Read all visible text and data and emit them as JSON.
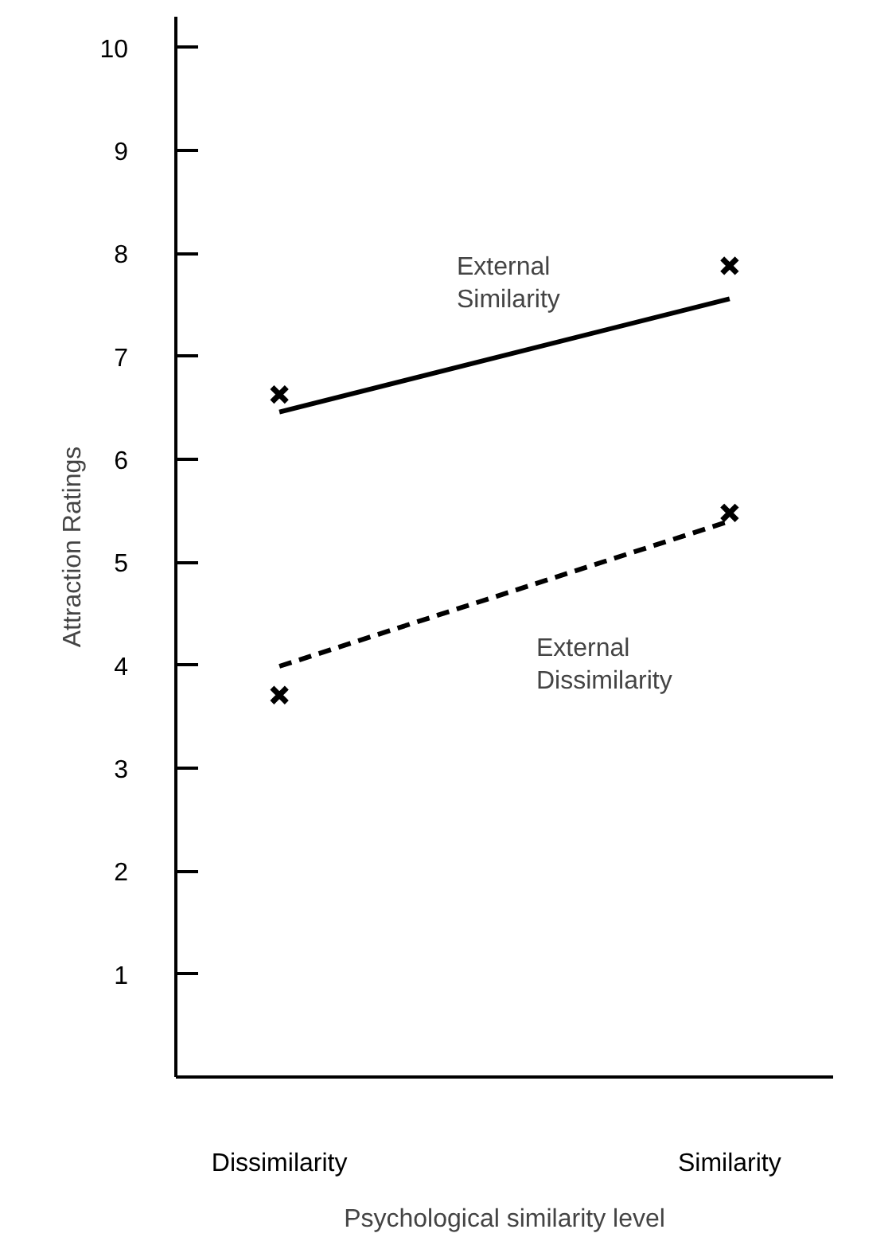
{
  "chart_data": {
    "type": "line",
    "xlabel": "Psychological similarity level",
    "ylabel": "Attraction Ratings",
    "categories": [
      "Dissimilarity",
      "Similarity"
    ],
    "ylim": [
      0,
      10.3
    ],
    "yticks": [
      1,
      2,
      3,
      4,
      5,
      6,
      7,
      8,
      9,
      10
    ],
    "grid": false,
    "series": [
      {
        "name": "External Similarity",
        "line_style": "solid",
        "color": "#000000",
        "values": [
          6.46,
          7.56
        ]
      },
      {
        "type": "scatter",
        "marker": "cross",
        "color": "#000000",
        "values": [
          6.63,
          7.88
        ]
      },
      {
        "name": "External Dissimilarity",
        "line_style": "dashed",
        "color": "#000000",
        "values": [
          3.99,
          5.4
        ]
      },
      {
        "type": "scatter",
        "marker": "cross",
        "color": "#000000",
        "values": [
          3.71,
          5.48
        ]
      }
    ]
  }
}
